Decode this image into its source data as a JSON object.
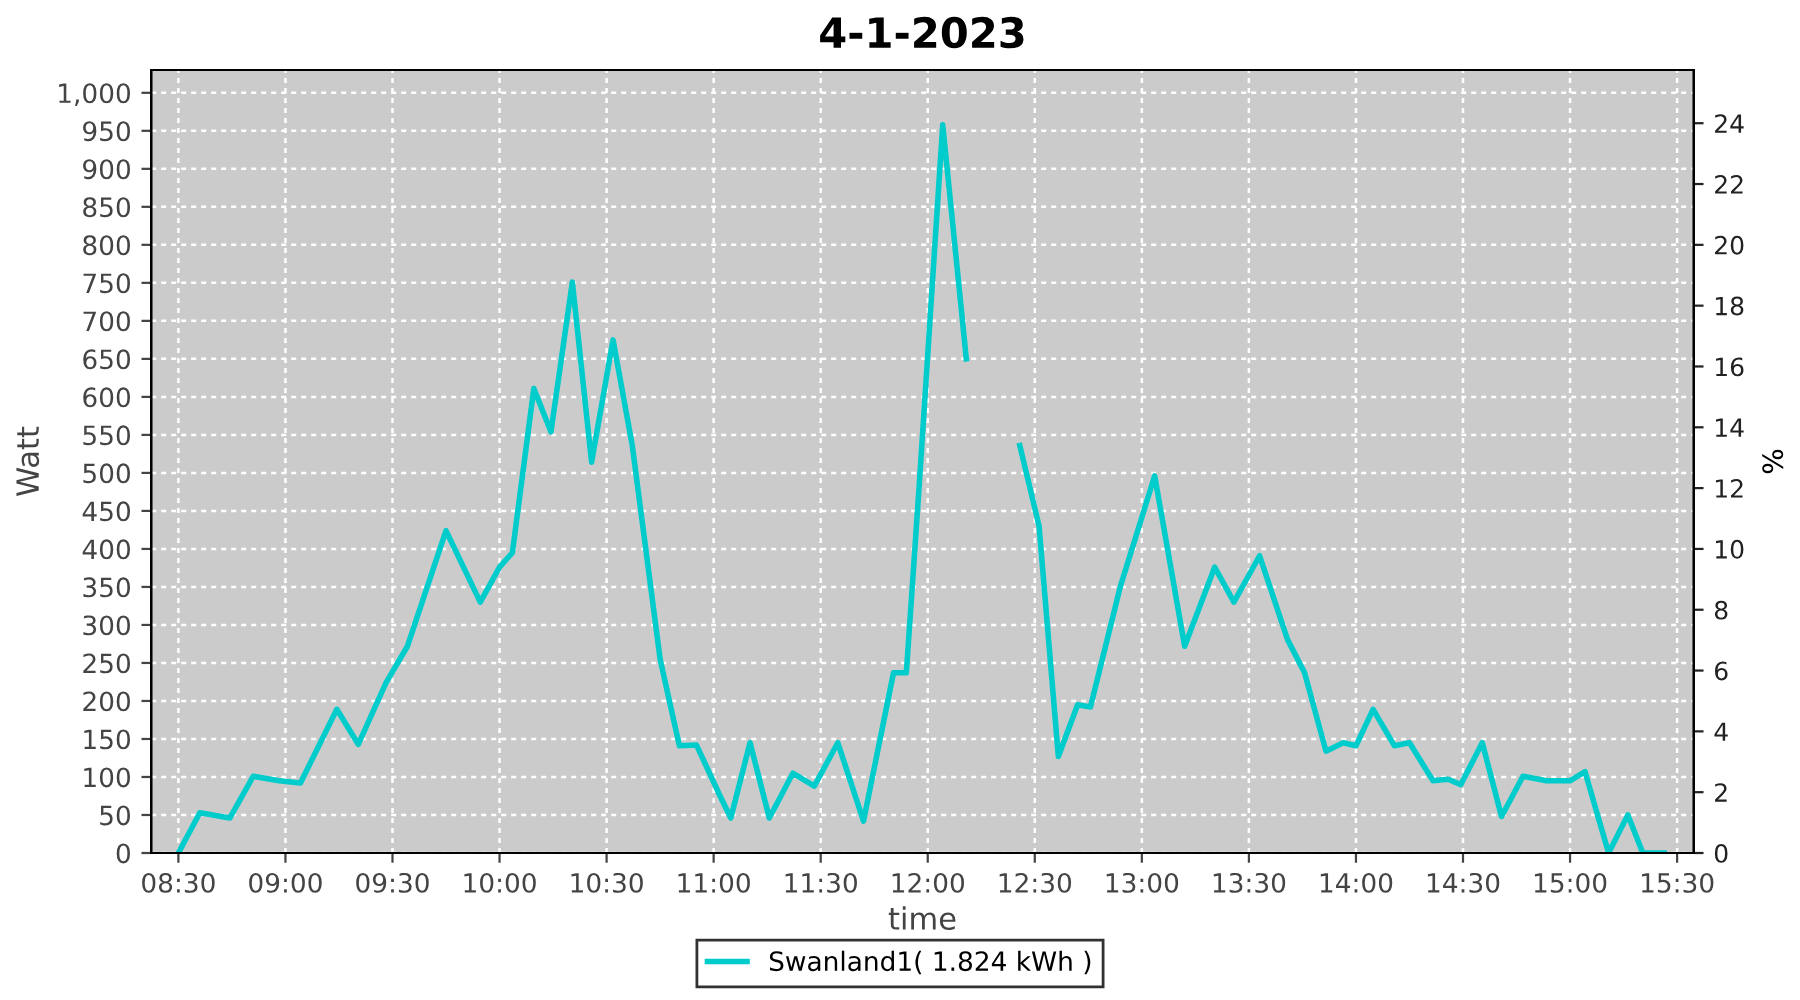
{
  "chart_data": {
    "type": "line",
    "title": "4-1-2023",
    "xlabel": "time",
    "ylabel": "Watt",
    "y2label": "%",
    "legend": "bottom",
    "grid": true,
    "marker": "none",
    "line_style": "solid",
    "xlim": [
      8.373,
      15.578
    ],
    "xticks": [
      {
        "value": 8.5,
        "label": "08:30"
      },
      {
        "value": 9,
        "label": "09:00"
      },
      {
        "value": 9.5,
        "label": "09:30"
      },
      {
        "value": 10,
        "label": "10:00"
      },
      {
        "value": 10.5,
        "label": "10:30"
      },
      {
        "value": 11,
        "label": "11:00"
      },
      {
        "value": 11.5,
        "label": "11:30"
      },
      {
        "value": 12,
        "label": "12:00"
      },
      {
        "value": 12.5,
        "label": "12:30"
      },
      {
        "value": 13,
        "label": "13:00"
      },
      {
        "value": 13.5,
        "label": "13:30"
      },
      {
        "value": 14,
        "label": "14:00"
      },
      {
        "value": 14.5,
        "label": "14:30"
      },
      {
        "value": 15,
        "label": "15:00"
      },
      {
        "value": 15.5,
        "label": "15:30"
      }
    ],
    "ylim": [
      0,
      1030
    ],
    "yticks": [
      0,
      50,
      100,
      150,
      200,
      250,
      300,
      350,
      400,
      450,
      500,
      550,
      600,
      650,
      700,
      750,
      800,
      850,
      900,
      950,
      {
        "value": 1000,
        "label": "1,000"
      }
    ],
    "y2lim": [
      0,
      25.75
    ],
    "y2ticks": [
      0,
      2,
      4,
      6,
      8,
      10,
      12,
      14,
      16,
      18,
      20,
      22,
      24
    ],
    "series": [
      {
        "name": "Swanland1( 1.824 kWh )",
        "color": "#00cccc",
        "x": [
          8.5,
          8.6,
          8.74,
          8.85,
          8.97,
          9.07,
          9.24,
          9.34,
          9.47,
          9.57,
          9.75,
          9.91,
          10.0,
          10.06,
          10.16,
          10.24,
          10.34,
          10.43,
          10.53,
          10.62,
          10.75,
          10.84,
          10.92,
          11.03,
          11.08,
          11.17,
          11.26,
          11.37,
          11.47,
          11.58,
          11.7,
          11.84,
          11.9,
          11.96,
          12.07,
          12.18,
          12.27,
          12.33,
          12.43,
          12.52,
          12.61,
          12.7,
          12.76,
          12.9,
          13.06,
          13.2,
          13.34,
          13.43,
          13.55,
          13.68,
          13.76,
          13.86,
          13.94,
          14.0,
          14.08,
          14.18,
          14.25,
          14.36,
          14.43,
          14.49,
          14.59,
          14.68,
          14.78,
          14.89,
          15.0,
          15.07,
          15.18,
          15.27,
          15.34,
          15.44
        ],
        "values": [
          0,
          53,
          46,
          101,
          95,
          92,
          189,
          143,
          224,
          272,
          424,
          330,
          376,
          395,
          611,
          554,
          751,
          514,
          675,
          536,
          255,
          141,
          142,
          75,
          46,
          145,
          46,
          105,
          88,
          145,
          42,
          237,
          237,
          483,
          958,
          650,
          null,
          null,
          536,
          430,
          127,
          195,
          192,
          351,
          496,
          272,
          376,
          330,
          391,
          281,
          237,
          134,
          145,
          141,
          189,
          141,
          145,
          95,
          97,
          90,
          145,
          48,
          101,
          95,
          95,
          107,
          0,
          50,
          0,
          0
        ]
      }
    ]
  }
}
